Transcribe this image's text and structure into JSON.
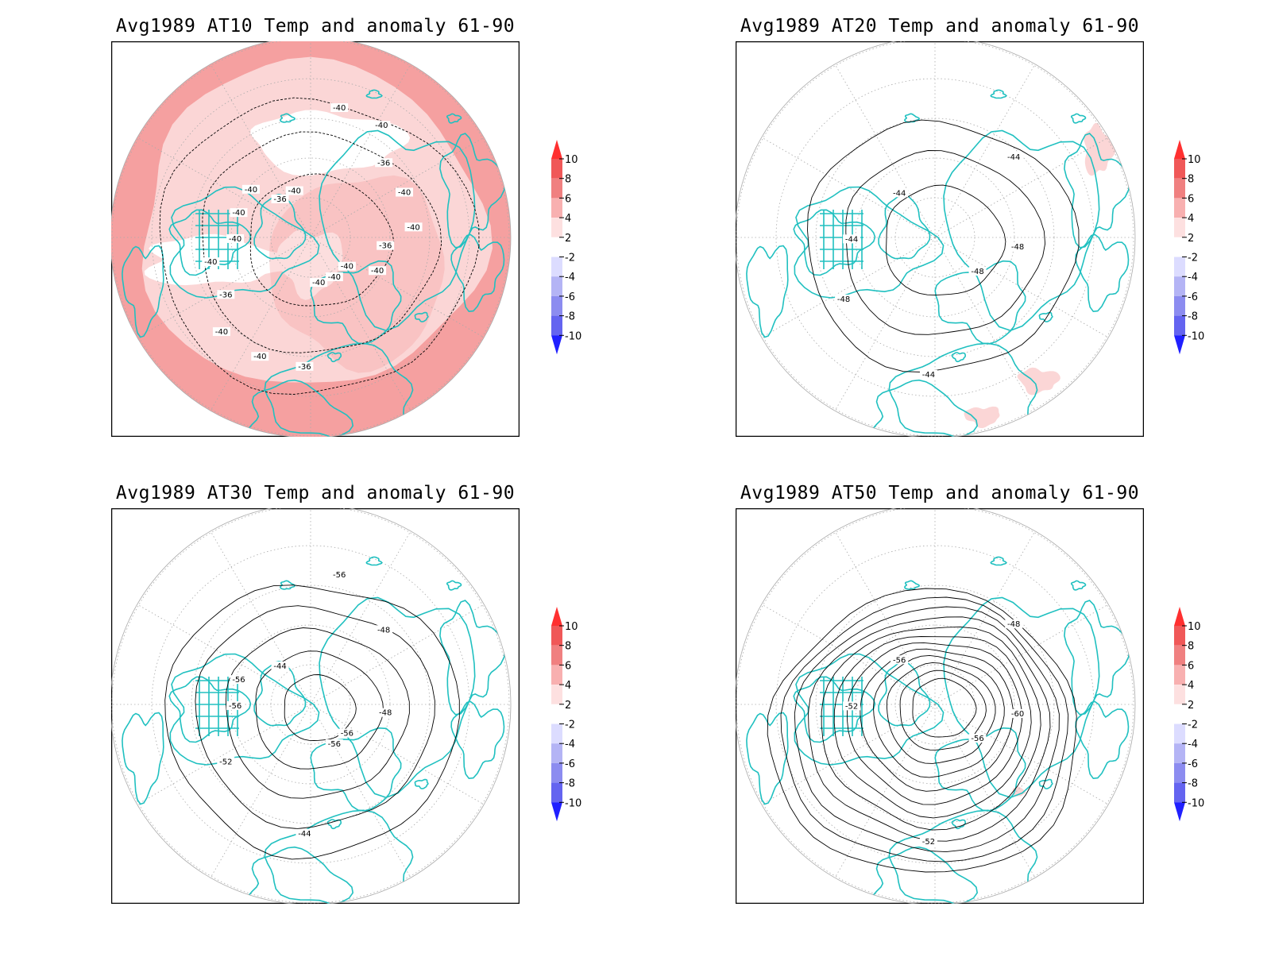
{
  "panels": [
    {
      "id": "at10",
      "title": "Avg1989 AT10 Temp and anomaly 61-90",
      "contour_labels": [
        "-40",
        "-40",
        "-36",
        "-36",
        "-36",
        "-36",
        "-36",
        "-40",
        "-40",
        "-40",
        "-40",
        "-40",
        "-40",
        "-40",
        "-40",
        "-40",
        "-40",
        "-40",
        "-40",
        "-40"
      ]
    },
    {
      "id": "at20",
      "title": "Avg1989 AT20 Temp and anomaly 61-90",
      "contour_labels": [
        "-48",
        "-44",
        "-44",
        "-44",
        "-44",
        "-48",
        "-48"
      ]
    },
    {
      "id": "at30",
      "title": "Avg1989 AT30 Temp and anomaly 61-90",
      "contour_labels": [
        "-56",
        "-56",
        "-48",
        "-44",
        "-44",
        "-48",
        "-52",
        "-56",
        "-56",
        "-56"
      ]
    },
    {
      "id": "at50",
      "title": "Avg1989 AT50 Temp and anomaly 61-90",
      "contour_labels": [
        "-56",
        "-52",
        "-48",
        "-52",
        "-56",
        "-60"
      ]
    }
  ],
  "legend": {
    "levels": [
      "10",
      "8",
      "6",
      "4",
      "2",
      "-2",
      "-4",
      "-6",
      "-8",
      "-10"
    ],
    "colors": [
      "#ff3030",
      "#f05858",
      "#f08080",
      "#f8b0b0",
      "#fde0e0",
      "#ffffff",
      "#dcdcff",
      "#b4b4f5",
      "#8c8cf0",
      "#6464f0",
      "#2020ff"
    ]
  },
  "colors": {
    "coast": "#20c0c0",
    "contour": "#000000",
    "grid": "#999999",
    "anom_2_4": "#fbd6d6",
    "anom_4_6": "#f5a0a0"
  }
}
